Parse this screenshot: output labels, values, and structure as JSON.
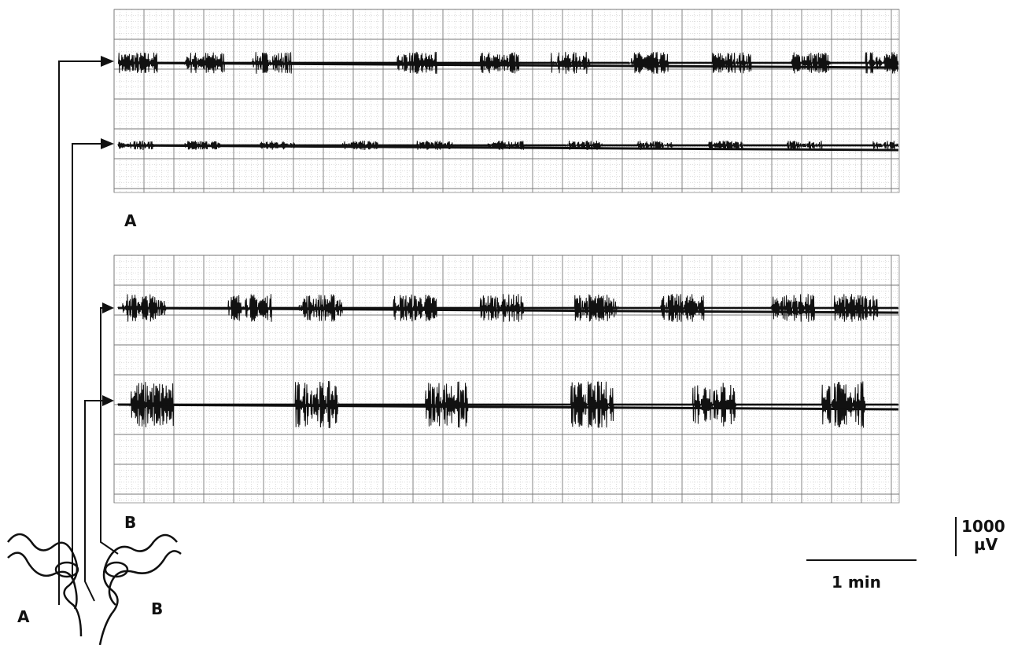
{
  "panel_labels": [
    "A"
  ],
  "diagram_labels": [
    "B",
    "A",
    "B"
  ],
  "scale_bars": {
    "voltage": {
      "value": 1000,
      "unit": "µV"
    },
    "time": "1 min"
  }
}
